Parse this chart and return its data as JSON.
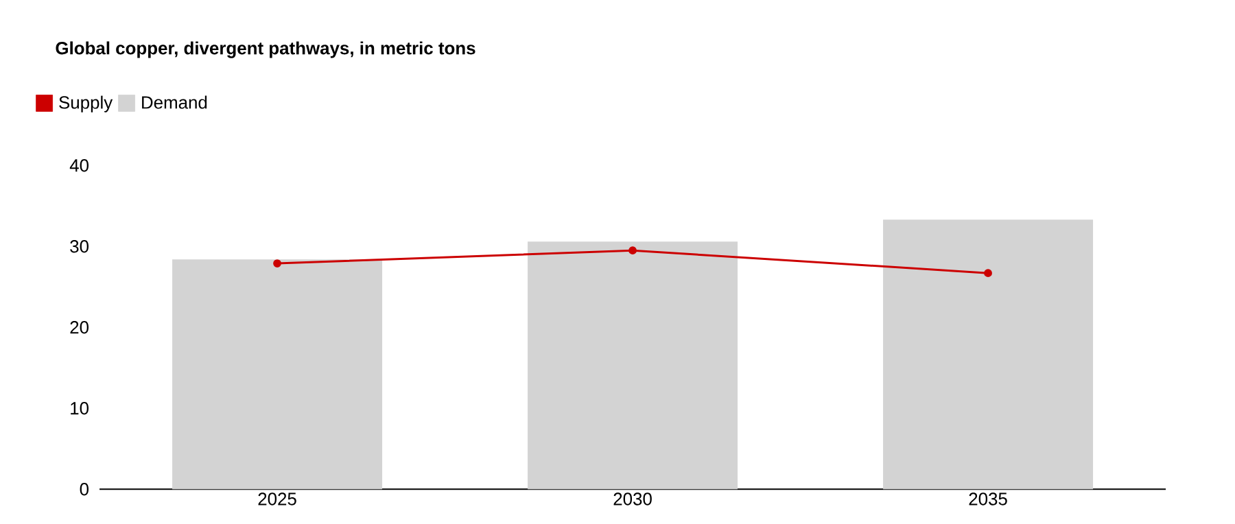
{
  "chart_data": {
    "type": "bar",
    "title": "Global copper, divergent pathways, in metric tons",
    "categories": [
      "2025",
      "2030",
      "2035"
    ],
    "series": [
      {
        "name": "Supply",
        "type": "line",
        "color": "#cc0000",
        "marker": "circle",
        "values": [
          27.9,
          29.5,
          26.7
        ]
      },
      {
        "name": "Demand",
        "color": "#d3d3d3",
        "values": [
          28.4,
          30.6,
          33.3
        ]
      }
    ],
    "ylim": [
      0,
      40
    ],
    "yticks": [
      0,
      10,
      20,
      30,
      40
    ],
    "grid": false,
    "legend": "top left"
  }
}
